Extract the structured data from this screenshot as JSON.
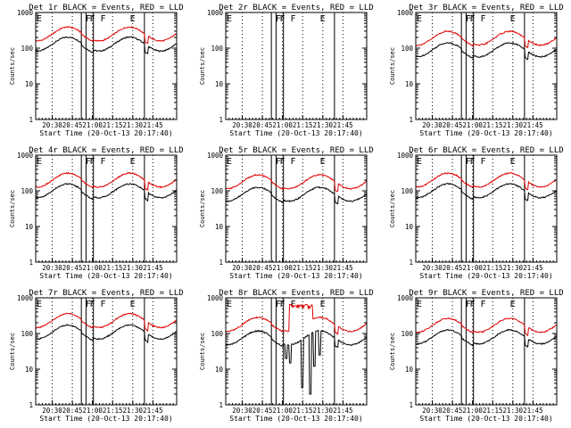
{
  "figure": {
    "background": "#ffffff",
    "events_color": "#000000",
    "lld_color": "#e00000"
  },
  "chart_data": [
    {
      "type": "line",
      "detector": "1r",
      "title": "Det 1r BLACK = Events, RED = LLD",
      "ylabel": "Counts/sec",
      "xlabel": "Start Time (20-Oct-13 20:17:40)",
      "x_ticks": [
        "20:30",
        "20:45",
        "21:00",
        "21:15",
        "21:30",
        "21:45"
      ],
      "y_ticks": [
        "1",
        "10",
        "100",
        "1000"
      ],
      "ylim": [
        1,
        1000
      ],
      "yscale": "log",
      "x_range_min": [
        0,
        105
      ],
      "flags": [
        {
          "label": "E",
          "t": 0
        },
        {
          "label": "F",
          "t": 36.5
        },
        {
          "label": "F",
          "t": 39.5
        },
        {
          "label": "F",
          "t": 47.5
        },
        {
          "label": "E",
          "t": 69.5
        }
      ],
      "solid_lines": [
        34,
        37.5,
        43,
        81
      ],
      "dotted_lines": [
        12.3,
        27.3,
        42.3,
        57.3,
        72.3,
        87.3
      ],
      "series": [
        {
          "name": "Events",
          "color": "#000000",
          "base": 130,
          "amp": 0.45,
          "period": 46,
          "peak_t": 24
        },
        {
          "name": "LLD",
          "color": "#e00000",
          "base": 250,
          "amp": 0.45,
          "period": 46,
          "peak_t": 24
        }
      ]
    },
    {
      "type": "line",
      "detector": "2r",
      "title": "Det 2r BLACK = Events, RED = LLD",
      "ylabel": "Counts/sec",
      "xlabel": "Start Time (20-Oct-13 20:17:40)",
      "x_ticks": [
        "20:30",
        "20:45",
        "21:00",
        "21:15",
        "21:30",
        "21:45"
      ],
      "y_ticks": [
        "1",
        "10",
        "100",
        "1000"
      ],
      "ylim": [
        1,
        1000
      ],
      "yscale": "log",
      "x_range_min": [
        0,
        105
      ],
      "flags": [
        {
          "label": "E",
          "t": 0
        },
        {
          "label": "F",
          "t": 36.5
        },
        {
          "label": "F",
          "t": 39.5
        },
        {
          "label": "F",
          "t": 47.5
        },
        {
          "label": "E",
          "t": 69.5
        }
      ],
      "solid_lines": [
        34,
        37.5,
        43,
        81
      ],
      "dotted_lines": [
        12.3,
        27.3,
        42.3,
        57.3,
        72.3,
        87.3
      ],
      "series": []
    },
    {
      "type": "line",
      "detector": "3r",
      "title": "Det 3r BLACK = Events, RED = LLD",
      "ylabel": "Counts/sec",
      "xlabel": "Start Time (20-Oct-13 20:17:40)",
      "x_ticks": [
        "20:30",
        "20:45",
        "21:00",
        "21:15",
        "21:30",
        "21:45"
      ],
      "y_ticks": [
        "1",
        "10",
        "100",
        "1000"
      ],
      "ylim": [
        1,
        1000
      ],
      "yscale": "log",
      "x_range_min": [
        0,
        105
      ],
      "flags": [
        {
          "label": "E",
          "t": 0
        },
        {
          "label": "F",
          "t": 36.5
        },
        {
          "label": "F",
          "t": 39.5
        },
        {
          "label": "F",
          "t": 47.5
        },
        {
          "label": "E",
          "t": 69.5
        }
      ],
      "solid_lines": [
        34,
        37.5,
        43,
        81
      ],
      "dotted_lines": [
        12.3,
        27.3,
        42.3,
        57.3,
        72.3,
        87.3
      ],
      "series": [
        {
          "name": "Events",
          "color": "#000000",
          "base": 90,
          "amp": 0.45,
          "period": 46,
          "peak_t": 24
        },
        {
          "name": "LLD",
          "color": "#e00000",
          "base": 190,
          "amp": 0.45,
          "period": 46,
          "peak_t": 24
        }
      ]
    },
    {
      "type": "line",
      "detector": "4r",
      "title": "Det 4r BLACK = Events, RED = LLD",
      "ylabel": "Counts/sec",
      "xlabel": "Start Time (20-Oct-13 20:17:40)",
      "x_ticks": [
        "20:30",
        "20:45",
        "21:00",
        "21:15",
        "21:30",
        "21:45"
      ],
      "y_ticks": [
        "1",
        "10",
        "100",
        "1000"
      ],
      "ylim": [
        1,
        1000
      ],
      "yscale": "log",
      "x_range_min": [
        0,
        105
      ],
      "flags": [
        {
          "label": "E",
          "t": 0
        },
        {
          "label": "F",
          "t": 36.5
        },
        {
          "label": "F",
          "t": 39.5
        },
        {
          "label": "F",
          "t": 47.5
        },
        {
          "label": "E",
          "t": 69.5
        }
      ],
      "solid_lines": [
        34,
        37.5,
        43,
        81
      ],
      "dotted_lines": [
        12.3,
        27.3,
        42.3,
        57.3,
        72.3,
        87.3
      ],
      "series": [
        {
          "name": "Events",
          "color": "#000000",
          "base": 100,
          "amp": 0.45,
          "period": 46,
          "peak_t": 24
        },
        {
          "name": "LLD",
          "color": "#e00000",
          "base": 200,
          "amp": 0.45,
          "period": 46,
          "peak_t": 24
        }
      ]
    },
    {
      "type": "line",
      "detector": "5r",
      "title": "Det 5r BLACK = Events, RED = LLD",
      "ylabel": "Counts/sec",
      "xlabel": "Start Time (20-Oct-13 20:17:40)",
      "x_ticks": [
        "20:30",
        "20:45",
        "21:00",
        "21:15",
        "21:30",
        "21:45"
      ],
      "y_ticks": [
        "1",
        "10",
        "100",
        "1000"
      ],
      "ylim": [
        1,
        1000
      ],
      "yscale": "log",
      "x_range_min": [
        0,
        105
      ],
      "flags": [
        {
          "label": "E",
          "t": 0
        },
        {
          "label": "F",
          "t": 36.5
        },
        {
          "label": "F",
          "t": 39.5
        },
        {
          "label": "F",
          "t": 47.5
        },
        {
          "label": "E",
          "t": 69.5
        }
      ],
      "solid_lines": [
        34,
        37.5,
        43,
        81
      ],
      "dotted_lines": [
        12.3,
        27.3,
        42.3,
        57.3,
        72.3,
        87.3
      ],
      "series": [
        {
          "name": "Events",
          "color": "#000000",
          "base": 80,
          "amp": 0.45,
          "period": 46,
          "peak_t": 24
        },
        {
          "name": "LLD",
          "color": "#e00000",
          "base": 180,
          "amp": 0.45,
          "period": 46,
          "peak_t": 24
        }
      ]
    },
    {
      "type": "line",
      "detector": "6r",
      "title": "Det 6r BLACK = Events, RED = LLD",
      "ylabel": "Counts/sec",
      "xlabel": "Start Time (20-Oct-13 20:17:40)",
      "x_ticks": [
        "20:30",
        "20:45",
        "21:00",
        "21:15",
        "21:30",
        "21:45"
      ],
      "y_ticks": [
        "1",
        "10",
        "100",
        "1000"
      ],
      "ylim": [
        1,
        1000
      ],
      "yscale": "log",
      "x_range_min": [
        0,
        105
      ],
      "flags": [
        {
          "label": "E",
          "t": 0
        },
        {
          "label": "F",
          "t": 36.5
        },
        {
          "label": "F",
          "t": 39.5
        },
        {
          "label": "F",
          "t": 47.5
        },
        {
          "label": "E",
          "t": 69.5
        }
      ],
      "solid_lines": [
        34,
        37.5,
        43,
        81
      ],
      "dotted_lines": [
        12.3,
        27.3,
        42.3,
        57.3,
        72.3,
        87.3
      ],
      "series": [
        {
          "name": "Events",
          "color": "#000000",
          "base": 100,
          "amp": 0.45,
          "period": 46,
          "peak_t": 24
        },
        {
          "name": "LLD",
          "color": "#e00000",
          "base": 200,
          "amp": 0.45,
          "period": 46,
          "peak_t": 24
        }
      ]
    },
    {
      "type": "line",
      "detector": "7r",
      "title": "Det 7r BLACK = Events, RED = LLD",
      "ylabel": "Counts/sec",
      "xlabel": "Start Time (20-Oct-13 20:17:40)",
      "x_ticks": [
        "20:30",
        "20:45",
        "21:00",
        "21:15",
        "21:30",
        "21:45"
      ],
      "y_ticks": [
        "1",
        "10",
        "100",
        "1000"
      ],
      "ylim": [
        1,
        1000
      ],
      "yscale": "log",
      "x_range_min": [
        0,
        105
      ],
      "flags": [
        {
          "label": "E",
          "t": 0
        },
        {
          "label": "F",
          "t": 36.5
        },
        {
          "label": "F",
          "t": 39.5
        },
        {
          "label": "F",
          "t": 47.5
        },
        {
          "label": "E",
          "t": 69.5
        }
      ],
      "solid_lines": [
        34,
        37.5,
        43,
        81
      ],
      "dotted_lines": [
        12.3,
        27.3,
        42.3,
        57.3,
        72.3,
        87.3
      ],
      "series": [
        {
          "name": "Events",
          "color": "#000000",
          "base": 110,
          "amp": 0.45,
          "period": 46,
          "peak_t": 24
        },
        {
          "name": "LLD",
          "color": "#e00000",
          "base": 230,
          "amp": 0.45,
          "period": 46,
          "peak_t": 24
        }
      ]
    },
    {
      "type": "line",
      "detector": "8r",
      "title": "Det 8r BLACK = Events, RED = LLD",
      "ylabel": "Counts/sec",
      "xlabel": "Start Time (20-Oct-13 20:17:40)",
      "x_ticks": [
        "20:30",
        "20:45",
        "21:00",
        "21:15",
        "21:30",
        "21:45"
      ],
      "y_ticks": [
        "1",
        "10",
        "100",
        "1000"
      ],
      "ylim": [
        1,
        1000
      ],
      "yscale": "log",
      "x_range_min": [
        0,
        105
      ],
      "flags": [
        {
          "label": "E",
          "t": 0
        },
        {
          "label": "F",
          "t": 36.5
        },
        {
          "label": "F",
          "t": 39.5
        },
        {
          "label": "F",
          "t": 47.5
        },
        {
          "label": "E",
          "t": 69.5
        }
      ],
      "solid_lines": [
        34,
        37.5,
        43,
        81
      ],
      "dotted_lines": [
        12.3,
        27.3,
        42.3,
        57.3,
        72.3,
        87.3
      ],
      "spikes": {
        "events_drops": [
          [
            45,
            20
          ],
          [
            48,
            15
          ],
          [
            57,
            3
          ],
          [
            63,
            2
          ],
          [
            66,
            12
          ],
          [
            70,
            25
          ]
        ],
        "lld_burst": [
          [
            48,
            650
          ],
          [
            52,
            600
          ],
          [
            56,
            300
          ],
          [
            60,
            650
          ],
          [
            64,
            600
          ]
        ]
      },
      "series": [
        {
          "name": "Events",
          "color": "#000000",
          "base": 75,
          "amp": 0.45,
          "period": 46,
          "peak_t": 24
        },
        {
          "name": "LLD",
          "color": "#e00000",
          "base": 180,
          "amp": 0.45,
          "period": 46,
          "peak_t": 24
        }
      ]
    },
    {
      "type": "line",
      "detector": "9r",
      "title": "Det 9r BLACK = Events, RED = LLD",
      "ylabel": "Counts/sec",
      "xlabel": "Start Time (20-Oct-13 20:17:40)",
      "x_ticks": [
        "20:30",
        "20:45",
        "21:00",
        "21:15",
        "21:30",
        "21:45"
      ],
      "y_ticks": [
        "1",
        "10",
        "100",
        "1000"
      ],
      "ylim": [
        1,
        1000
      ],
      "yscale": "log",
      "x_range_min": [
        0,
        105
      ],
      "flags": [
        {
          "label": "E",
          "t": 0
        },
        {
          "label": "F",
          "t": 36.5
        },
        {
          "label": "F",
          "t": 39.5
        },
        {
          "label": "F",
          "t": 47.5
        },
        {
          "label": "E",
          "t": 69.5
        }
      ],
      "solid_lines": [
        34,
        37.5,
        43,
        81
      ],
      "dotted_lines": [
        12.3,
        27.3,
        42.3,
        57.3,
        72.3,
        87.3
      ],
      "series": [
        {
          "name": "Events",
          "color": "#000000",
          "base": 80,
          "amp": 0.45,
          "period": 46,
          "peak_t": 24
        },
        {
          "name": "LLD",
          "color": "#e00000",
          "base": 170,
          "amp": 0.45,
          "period": 46,
          "peak_t": 24
        }
      ]
    }
  ]
}
